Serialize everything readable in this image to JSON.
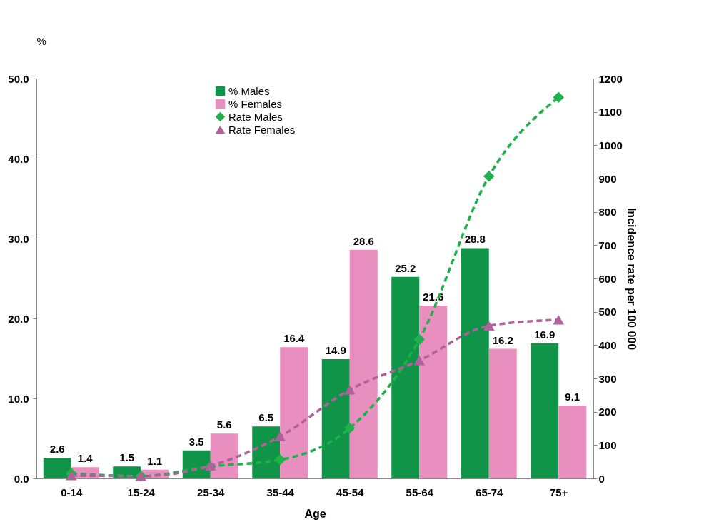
{
  "chart_data": {
    "type": "bar",
    "xlabel": "Age",
    "ylabel": "%",
    "y2label": "Incidence rate per  100 000",
    "categories": [
      "0-14",
      "15-24",
      "25-34",
      "35-44",
      "45-54",
      "55-64",
      "65-74",
      "75+"
    ],
    "series": [
      {
        "name": "% Males",
        "color": "#0f9448",
        "values": [
          2.6,
          1.5,
          3.5,
          6.5,
          14.9,
          25.2,
          28.8,
          16.9
        ],
        "value_labels": [
          "2.6",
          "1.5",
          "3.5",
          "6.5",
          "14.9",
          "25.2",
          "28.8",
          "16.9"
        ]
      },
      {
        "name": "% Females",
        "color": "#e98fbf",
        "values": [
          1.4,
          1.1,
          5.6,
          16.4,
          28.6,
          21.6,
          16.2,
          9.1
        ],
        "value_labels": [
          "1.4",
          "1.1",
          "5.6",
          "16.4",
          "28.6",
          "21.6",
          "16.2",
          "9.1"
        ]
      },
      {
        "name": "Rate Males",
        "type": "line",
        "axis": "y2",
        "color": "#1fb14a",
        "marker": "diamond",
        "line_style": "dashed",
        "values": [
          15,
          7,
          36,
          56,
          151,
          417,
          907,
          1144
        ]
      },
      {
        "name": "Rate Females",
        "type": "line",
        "axis": "y2",
        "color": "#b0609a",
        "marker": "triangle",
        "line_style": "dashed",
        "values": [
          9,
          7,
          38,
          126,
          266,
          354,
          458,
          476
        ]
      }
    ],
    "ylim": [
      0,
      50
    ],
    "yticks": [
      {
        "value": 0,
        "label": "0.0"
      },
      {
        "value": 10,
        "label": "10.0"
      },
      {
        "value": 20,
        "label": "20.0"
      },
      {
        "value": 30,
        "label": "30.0"
      },
      {
        "value": 40,
        "label": "40.0"
      },
      {
        "value": 50,
        "label": "50.0"
      }
    ],
    "y2lim": [
      0,
      1200
    ],
    "y2ticks": [
      0,
      100,
      200,
      300,
      400,
      500,
      600,
      700,
      800,
      900,
      1000,
      1100,
      1200
    ],
    "legend": "top"
  }
}
